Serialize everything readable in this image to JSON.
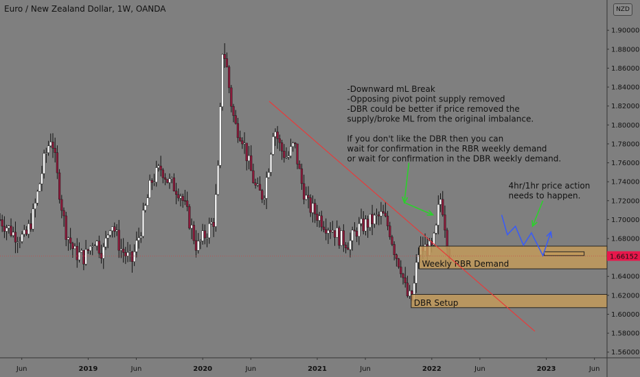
{
  "chart_data": {
    "type": "candlestick",
    "title": "Euro / New Zealand Dollar, 1W, OANDA",
    "currency_badge": "NZD",
    "last_price_label": "1.66152",
    "y_ticks": [
      "1.90000",
      "1.88000",
      "1.86000",
      "1.84000",
      "1.82000",
      "1.80000",
      "1.78000",
      "1.76000",
      "1.74000",
      "1.72000",
      "1.70000",
      "1.68000",
      "1.66152",
      "1.64000",
      "1.62000",
      "1.60000",
      "1.58000",
      "1.56000"
    ],
    "y_tick_values": [
      1.9,
      1.88,
      1.86,
      1.84,
      1.82,
      1.8,
      1.78,
      1.76,
      1.74,
      1.72,
      1.7,
      1.68,
      1.66152,
      1.64,
      1.62,
      1.6,
      1.58,
      1.56
    ],
    "ylim": [
      1.554,
      1.932
    ],
    "x_ticks": [
      {
        "label": "Jun",
        "value": 2018.42,
        "bold": false
      },
      {
        "label": "2019",
        "value": 2019.0,
        "bold": true
      },
      {
        "label": "Jun",
        "value": 2019.42,
        "bold": false
      },
      {
        "label": "2020",
        "value": 2020.0,
        "bold": true
      },
      {
        "label": "Jun",
        "value": 2020.42,
        "bold": false
      },
      {
        "label": "2021",
        "value": 2021.0,
        "bold": true
      },
      {
        "label": "Jun",
        "value": 2021.42,
        "bold": false
      },
      {
        "label": "2022",
        "value": 2022.0,
        "bold": true
      },
      {
        "label": "Jun",
        "value": 2022.42,
        "bold": false
      },
      {
        "label": "2023",
        "value": 2023.0,
        "bold": true
      },
      {
        "label": "Jun",
        "value": 2023.42,
        "bold": false
      }
    ],
    "xlim": [
      2018.23,
      2023.53
    ],
    "price_path": [
      [
        2018.23,
        1.7
      ],
      [
        2018.35,
        1.685
      ],
      [
        2018.45,
        1.68
      ],
      [
        2018.52,
        1.705
      ],
      [
        2018.62,
        1.765
      ],
      [
        2018.68,
        1.79
      ],
      [
        2018.73,
        1.745
      ],
      [
        2018.8,
        1.69
      ],
      [
        2018.88,
        1.665
      ],
      [
        2018.97,
        1.66
      ],
      [
        2019.05,
        1.68
      ],
      [
        2019.13,
        1.665
      ],
      [
        2019.2,
        1.7
      ],
      [
        2019.28,
        1.67
      ],
      [
        2019.38,
        1.655
      ],
      [
        2019.46,
        1.69
      ],
      [
        2019.55,
        1.74
      ],
      [
        2019.64,
        1.755
      ],
      [
        2019.7,
        1.74
      ],
      [
        2019.8,
        1.73
      ],
      [
        2019.88,
        1.7
      ],
      [
        2019.95,
        1.67
      ],
      [
        2020.05,
        1.69
      ],
      [
        2020.1,
        1.7
      ],
      [
        2020.14,
        1.76
      ],
      [
        2020.17,
        1.88
      ],
      [
        2020.2,
        1.87
      ],
      [
        2020.24,
        1.83
      ],
      [
        2020.28,
        1.8
      ],
      [
        2020.34,
        1.79
      ],
      [
        2020.4,
        1.76
      ],
      [
        2020.47,
        1.73
      ],
      [
        2020.53,
        1.725
      ],
      [
        2020.58,
        1.76
      ],
      [
        2020.62,
        1.8
      ],
      [
        2020.68,
        1.775
      ],
      [
        2020.74,
        1.765
      ],
      [
        2020.8,
        1.78
      ],
      [
        2020.86,
        1.74
      ],
      [
        2020.92,
        1.715
      ],
      [
        2021.0,
        1.705
      ],
      [
        2021.07,
        1.695
      ],
      [
        2021.14,
        1.69
      ],
      [
        2021.2,
        1.68
      ],
      [
        2021.28,
        1.675
      ],
      [
        2021.35,
        1.69
      ],
      [
        2021.42,
        1.695
      ],
      [
        2021.5,
        1.7
      ],
      [
        2021.57,
        1.705
      ],
      [
        2021.63,
        1.69
      ],
      [
        2021.68,
        1.665
      ],
      [
        2021.73,
        1.65
      ],
      [
        2021.78,
        1.62
      ],
      [
        2021.83,
        1.615
      ],
      [
        2021.88,
        1.665
      ],
      [
        2021.94,
        1.67
      ],
      [
        2022.0,
        1.668
      ],
      [
        2022.04,
        1.69
      ],
      [
        2022.07,
        1.725
      ],
      [
        2022.1,
        1.71
      ],
      [
        2022.13,
        1.68
      ],
      [
        2022.16,
        1.661
      ]
    ],
    "trendline": {
      "from": [
        2020.58,
        1.825
      ],
      "to": [
        2022.9,
        1.582
      ]
    },
    "zones": [
      {
        "label": "Weekly RBR Demand",
        "x_start": 2021.89,
        "y_top": 1.672,
        "y_bottom": 1.648
      },
      {
        "label": "DBR Setup",
        "x_start": 2021.82,
        "y_top": 1.621,
        "y_bottom": 1.607
      },
      {
        "label": "",
        "x_start": 2022.98,
        "x_end": 2023.33,
        "y_top": 1.666,
        "y_bottom": 1.662
      }
    ],
    "annotations": {
      "note_lines": [
        "-Downward mL Break",
        "-Opposing pivot point supply removed",
        "-DBR could be better if price removed the",
        "supply/broke ML from the original imbalance.",
        "",
        "If you don't like the DBR then you can",
        "wait for confirmation in the RBR weekly demand",
        "or wait for confirmation in the DBR weekly demand."
      ],
      "note_anchor": [
        2021.26,
        1.835
      ],
      "action_lines": [
        "4hr/1hr price action",
        "needs to happen."
      ],
      "action_anchor": [
        2022.67,
        1.733
      ]
    },
    "arrows": {
      "green_zigzag": [
        [
          2021.8,
          1.76
        ],
        [
          2021.76,
          1.718
        ],
        [
          2022.01,
          1.705
        ]
      ],
      "green_pointer": [
        [
          2022.97,
          1.72
        ],
        [
          2022.88,
          1.693
        ]
      ],
      "blue_path": [
        [
          2022.61,
          1.705
        ],
        [
          2022.66,
          1.684
        ],
        [
          2022.73,
          1.693
        ],
        [
          2022.8,
          1.673
        ],
        [
          2022.87,
          1.686
        ],
        [
          2022.97,
          1.662
        ],
        [
          2023.04,
          1.687
        ]
      ]
    },
    "colors": {
      "background": "#7f7f7f",
      "candle_up": "#ffffff",
      "candle_down": "#8b1a3a",
      "wick": "#111111",
      "trendline": "#e83a3a",
      "zone_fill": "#c29a5a",
      "zone_border": "#222222",
      "green_arrow": "#2bd12b",
      "blue_arrow": "#3a5cf5",
      "price_badge": "#e8174b",
      "price_line": "#c94a4a"
    }
  }
}
